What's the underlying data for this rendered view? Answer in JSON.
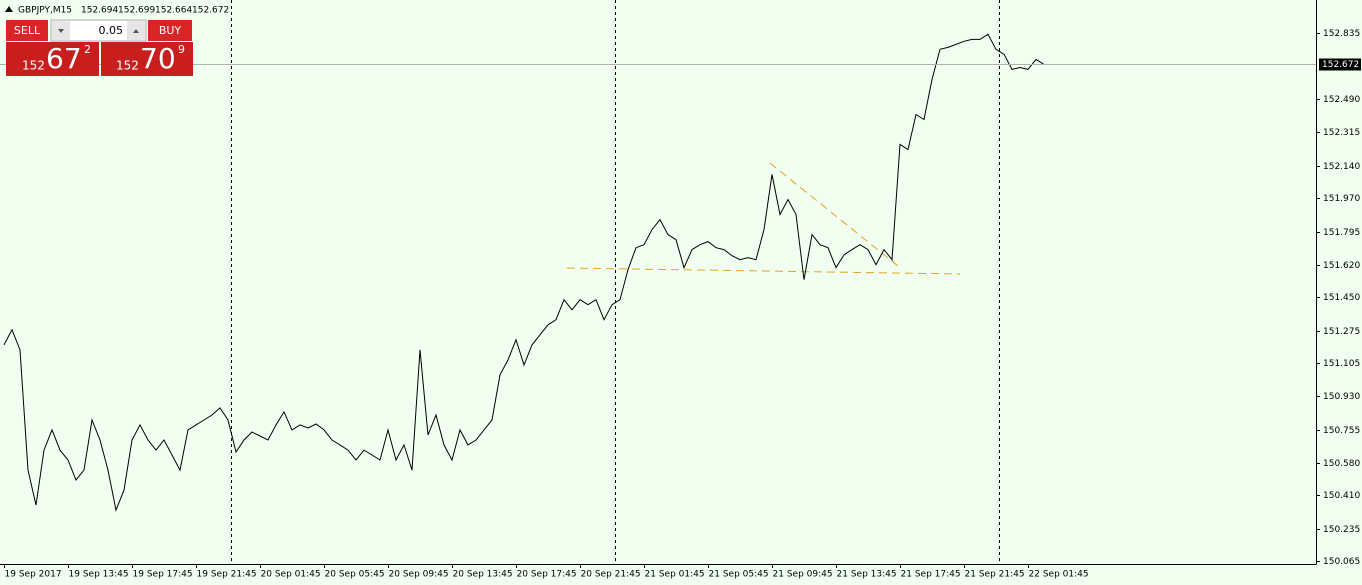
{
  "chart_data": {
    "type": "line",
    "title": "GBPJPY,M15",
    "ohlc": [
      152.694,
      152.699,
      152.664,
      152.672
    ],
    "current_price": 152.672,
    "color": "#000000",
    "categories": [
      "19 Sep 2017",
      null,
      null,
      null,
      null,
      null,
      null,
      null,
      "19 Sep 13:45",
      null,
      null,
      null,
      null,
      null,
      null,
      null,
      "19 Sep 17:45",
      null,
      null,
      null,
      null,
      null,
      null,
      null,
      "19 Sep 21:45",
      null,
      null,
      null,
      null,
      null,
      null,
      null,
      "20 Sep 01:45",
      null,
      null,
      null,
      null,
      null,
      null,
      null,
      "20 Sep 05:45",
      null,
      null,
      null,
      null,
      null,
      null,
      null,
      "20 Sep 09:45",
      null,
      null,
      null,
      null,
      null,
      null,
      null,
      "20 Sep 13:45",
      null,
      null,
      null,
      null,
      null,
      null,
      null,
      "20 Sep 17:45",
      null,
      null,
      null,
      null,
      null,
      null,
      null,
      "20 Sep 21:45",
      null,
      null,
      null,
      null,
      null,
      null,
      null,
      "21 Sep 01:45",
      null,
      null,
      null,
      null,
      null,
      null,
      null,
      "21 Sep 05:45",
      null,
      null,
      null,
      null,
      null,
      null,
      null,
      "21 Sep 09:45",
      null,
      null,
      null,
      null,
      null,
      null,
      null,
      "21 Sep 13:45",
      null,
      null,
      null,
      null,
      null,
      null,
      null,
      "21 Sep 17:45",
      null,
      null,
      null,
      null,
      null,
      null,
      null,
      "21 Sep 21:45",
      null,
      null,
      null,
      null,
      null,
      null,
      null,
      "22 Sep 01:45",
      null,
      null
    ],
    "values": [
      151.2,
      151.279,
      151.174,
      150.543,
      150.359,
      150.648,
      150.754,
      150.648,
      150.596,
      150.491,
      150.543,
      150.806,
      150.701,
      150.543,
      150.333,
      150.438,
      150.701,
      150.78,
      150.701,
      150.648,
      150.701,
      150.622,
      150.543,
      150.754,
      150.78,
      150.806,
      150.832,
      150.869,
      150.806,
      150.638,
      150.701,
      150.743,
      150.722,
      150.701,
      150.78,
      150.848,
      150.754,
      150.78,
      150.764,
      150.785,
      150.754,
      150.701,
      150.675,
      150.648,
      150.596,
      150.648,
      150.622,
      150.596,
      150.754,
      150.596,
      150.675,
      150.543,
      151.174,
      150.727,
      150.832,
      150.675,
      150.596,
      150.754,
      150.675,
      150.701,
      150.754,
      150.806,
      151.043,
      151.121,
      151.227,
      151.095,
      151.2,
      151.253,
      151.305,
      151.332,
      151.437,
      151.384,
      151.437,
      151.411,
      151.437,
      151.332,
      151.411,
      151.437,
      151.595,
      151.71,
      151.726,
      151.805,
      151.857,
      151.779,
      151.752,
      151.605,
      151.7,
      151.726,
      151.742,
      151.71,
      151.7,
      151.668,
      151.647,
      151.658,
      151.647,
      151.805,
      152.094,
      151.884,
      151.963,
      151.884,
      151.542,
      151.779,
      151.726,
      151.71,
      151.605,
      151.673,
      151.7,
      151.726,
      151.7,
      151.621,
      151.7,
      151.647,
      152.252,
      152.225,
      152.409,
      152.383,
      152.593,
      152.751,
      152.761,
      152.777,
      152.793,
      152.803,
      152.803,
      152.83,
      152.751,
      152.725,
      152.646,
      152.656,
      152.646,
      152.698,
      152.672
    ],
    "ylim": [
      150.05,
      153.01
    ],
    "yticks": [
      152.835,
      {
        "value": 152.49,
        "label": "152.490"
      },
      152.315,
      {
        "value": 152.14,
        "label": "152.140"
      },
      {
        "value": 151.97,
        "label": "151.970"
      },
      151.795,
      {
        "value": 151.62,
        "label": "151.620"
      },
      {
        "value": 151.45,
        "label": "151.450"
      },
      151.275,
      151.105,
      {
        "value": 150.93,
        "label": "150.930"
      },
      150.755,
      {
        "value": 150.58,
        "label": "150.580"
      },
      {
        "value": 150.41,
        "label": "150.410"
      },
      150.235,
      150.065
    ]
  },
  "trade_panel": {
    "sell_label": "SELL",
    "buy_label": "BUY",
    "lot": "0.05",
    "sell_price": {
      "prefix": "152",
      "big": "67",
      "sup": "2"
    },
    "buy_price": {
      "prefix": "152",
      "big": "70",
      "sup": "9"
    }
  }
}
